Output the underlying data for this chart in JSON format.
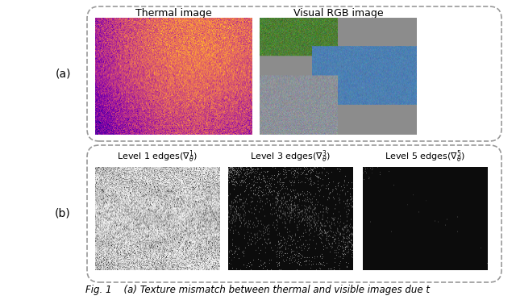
{
  "title_a_left": "Thermal image",
  "title_a_right": "Visual RGB image",
  "label_a": "(a)",
  "label_b": "(b)",
  "caption": "Fig. 1    (a) Texture mismatch between thermal and visible images due t",
  "bg_color": "#ffffff",
  "border_color": "#999999"
}
